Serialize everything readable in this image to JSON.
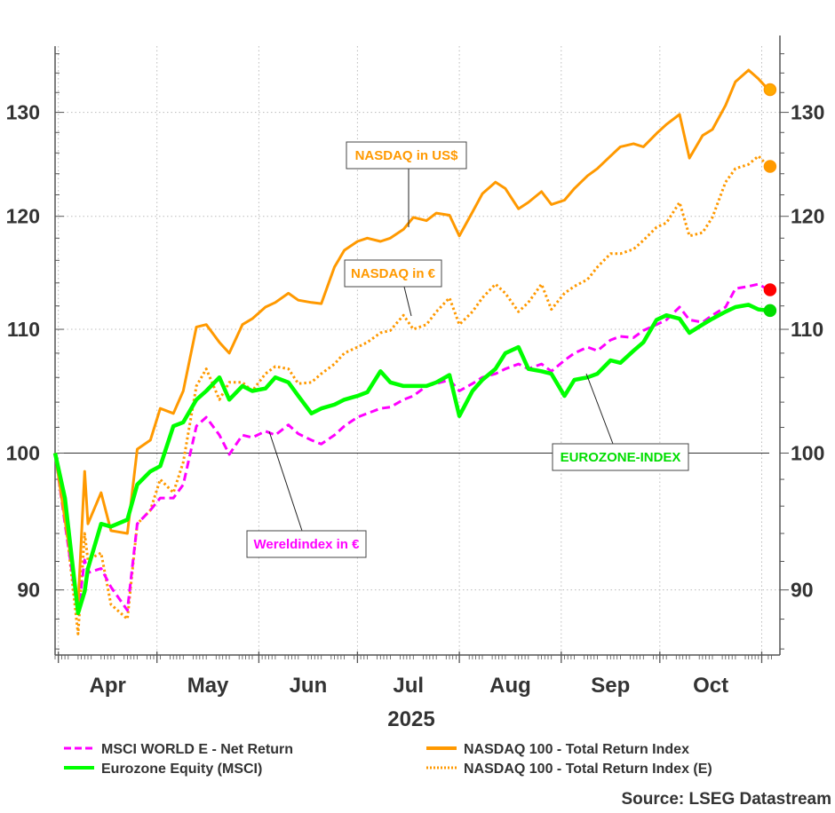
{
  "chart_data": {
    "type": "line",
    "title": "",
    "xlabel": "2025",
    "ylabel": "",
    "y_scale": "log",
    "ylim": [
      85.6,
      136.8
    ],
    "y_ticks": [
      90,
      100,
      110,
      120,
      130
    ],
    "y_axis_sides": [
      "left",
      "right"
    ],
    "reference_line": 100,
    "grid": true,
    "x_month_labels": [
      "Apr",
      "May",
      "Jun",
      "Jul",
      "Aug",
      "Sep",
      "Oct"
    ],
    "x_month_starts": [
      "2025-04-01",
      "2025-05-01",
      "2025-06-01",
      "2025-07-01",
      "2025-08-01",
      "2025-09-01",
      "2025-10-01",
      "2025-11-01"
    ],
    "x_range": [
      "2025-03-31",
      "2025-11-04"
    ],
    "x": [
      "2025-03-31",
      "2025-04-03",
      "2025-04-07",
      "2025-04-09",
      "2025-04-10",
      "2025-04-14",
      "2025-04-17",
      "2025-04-22",
      "2025-04-25",
      "2025-04-29",
      "2025-05-02",
      "2025-05-06",
      "2025-05-09",
      "2025-05-13",
      "2025-05-16",
      "2025-05-20",
      "2025-05-23",
      "2025-05-27",
      "2025-05-30",
      "2025-06-03",
      "2025-06-06",
      "2025-06-10",
      "2025-06-13",
      "2025-06-17",
      "2025-06-20",
      "2025-06-24",
      "2025-06-27",
      "2025-07-01",
      "2025-07-04",
      "2025-07-08",
      "2025-07-11",
      "2025-07-15",
      "2025-07-18",
      "2025-07-22",
      "2025-07-25",
      "2025-07-29",
      "2025-08-01",
      "2025-08-05",
      "2025-08-08",
      "2025-08-12",
      "2025-08-15",
      "2025-08-19",
      "2025-08-22",
      "2025-08-26",
      "2025-08-29",
      "2025-09-02",
      "2025-09-05",
      "2025-09-09",
      "2025-09-12",
      "2025-09-16",
      "2025-09-19",
      "2025-09-23",
      "2025-09-26",
      "2025-09-30",
      "2025-10-03",
      "2025-10-07",
      "2025-10-10",
      "2025-10-14",
      "2025-10-17",
      "2025-10-21",
      "2025-10-24",
      "2025-10-28",
      "2025-10-31",
      "2025-11-03"
    ],
    "series": [
      {
        "name": "MSCI WORLD E - Net Return",
        "color": "#FF00FF",
        "style": "dashed",
        "values": [
          100,
          94.7,
          88.4,
          92.1,
          91.2,
          91.5,
          90.2,
          88.6,
          94.7,
          95.7,
          96.6,
          96.6,
          97.6,
          102.1,
          102.8,
          101.4,
          99.9,
          101.4,
          101.2,
          101.7,
          101.4,
          102.2,
          101.5,
          101.0,
          100.7,
          101.4,
          102.1,
          102.8,
          103.1,
          103.5,
          103.6,
          104.2,
          104.5,
          105.3,
          105.5,
          105.8,
          104.9,
          105.5,
          106.0,
          106.3,
          106.7,
          107.1,
          106.7,
          107.1,
          106.5,
          107.4,
          108.0,
          108.5,
          108.2,
          109.1,
          109.4,
          109.3,
          109.9,
          110.4,
          110.8,
          111.9,
          110.8,
          110.6,
          111.2,
          111.9,
          113.5,
          113.7,
          113.9,
          113.4
        ]
      },
      {
        "name": "Eurozone Equity (MSCI)",
        "color": "#00FF00",
        "style": "solid",
        "values": [
          100,
          96.6,
          88.4,
          89.9,
          91.5,
          94.7,
          94.5,
          95.0,
          97.6,
          98.6,
          99.0,
          102.1,
          102.4,
          104.2,
          104.9,
          106.0,
          104.2,
          105.3,
          104.9,
          105.1,
          106.0,
          105.6,
          104.5,
          103.1,
          103.5,
          103.8,
          104.2,
          104.5,
          104.8,
          106.5,
          105.6,
          105.3,
          105.3,
          105.3,
          105.6,
          106.2,
          102.9,
          104.9,
          105.8,
          106.7,
          108.0,
          108.5,
          106.7,
          106.5,
          106.3,
          104.5,
          105.8,
          106.0,
          106.3,
          107.4,
          107.2,
          108.2,
          108.9,
          110.8,
          111.2,
          110.9,
          109.7,
          110.4,
          110.9,
          111.5,
          111.9,
          112.1,
          111.7,
          111.6
        ]
      },
      {
        "name": "NASDAQ 100 - Total Return Index",
        "color": "#FF9900",
        "style": "solid",
        "values": [
          100,
          95.0,
          89.0,
          98.6,
          94.7,
          97.0,
          94.2,
          94.0,
          100.3,
          101.0,
          103.5,
          103.1,
          104.9,
          110.2,
          110.4,
          108.9,
          108.0,
          110.4,
          110.9,
          111.9,
          112.3,
          113.1,
          112.5,
          112.3,
          112.2,
          115.4,
          116.9,
          117.7,
          118.0,
          117.7,
          118.0,
          118.8,
          119.9,
          119.6,
          120.3,
          120.1,
          118.2,
          120.4,
          122.1,
          123.2,
          122.6,
          120.7,
          121.3,
          122.3,
          121.1,
          121.5,
          122.6,
          123.8,
          124.5,
          125.7,
          126.6,
          126.9,
          126.6,
          127.9,
          128.8,
          129.8,
          125.5,
          127.7,
          128.3,
          130.7,
          133.1,
          134.3,
          133.4,
          132.3
        ]
      },
      {
        "name": "NASDAQ 100 - Total Return Index (E)",
        "color": "#FF9900",
        "style": "dotted",
        "values": [
          100,
          95.3,
          87.0,
          94.0,
          92.1,
          92.6,
          89.0,
          88.0,
          94.7,
          95.7,
          98.0,
          97.0,
          99.3,
          105.3,
          106.7,
          104.2,
          105.6,
          105.6,
          104.9,
          106.3,
          106.9,
          106.7,
          105.5,
          105.6,
          106.3,
          107.1,
          108.0,
          108.5,
          108.9,
          109.7,
          109.9,
          111.2,
          110.0,
          110.4,
          111.5,
          112.7,
          110.4,
          111.5,
          112.7,
          113.9,
          113.1,
          111.5,
          112.3,
          113.9,
          111.7,
          113.1,
          113.7,
          114.3,
          115.4,
          116.6,
          116.6,
          117.0,
          117.8,
          119.0,
          119.4,
          121.3,
          118.2,
          118.5,
          119.9,
          123.2,
          124.5,
          124.9,
          125.7,
          124.7
        ]
      }
    ],
    "end_markers": [
      {
        "series": "NASDAQ 100 - Total Return Index",
        "value": 132.3,
        "color": "#FFAA00"
      },
      {
        "series": "NASDAQ 100 - Total Return Index (E)",
        "value": 124.7,
        "color": "#FF9900"
      },
      {
        "series": "MSCI WORLD E - Net Return",
        "value": 113.4,
        "color": "#FF0000"
      },
      {
        "series": "Eurozone Equity (MSCI)",
        "value": 111.6,
        "color": "#00DD00"
      }
    ],
    "annotations": [
      {
        "text": "NASDAQ in US$",
        "color": "#FF9900",
        "series": "NASDAQ 100 - Total Return Index"
      },
      {
        "text": "NASDAQ in €",
        "color": "#FF9900",
        "series": "NASDAQ 100 - Total Return Index (E)"
      },
      {
        "text": "Wereldindex in €",
        "color": "#FF00FF",
        "series": "MSCI WORLD E - Net Return"
      },
      {
        "text": "EUROZONE-INDEX",
        "color": "#00DD00",
        "series": "Eurozone Equity (MSCI)"
      }
    ],
    "legend": {
      "placement": "bottom",
      "entries": [
        "MSCI WORLD E - Net Return",
        "Eurozone Equity (MSCI)",
        "NASDAQ 100 - Total Return Index",
        "NASDAQ 100 - Total Return Index (E)"
      ]
    },
    "source": "Source: LSEG Datastream"
  }
}
